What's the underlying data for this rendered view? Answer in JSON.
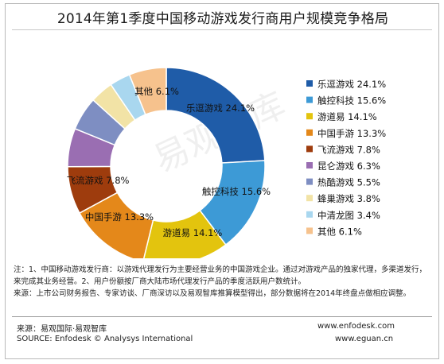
{
  "title": "2014年第1季度中国移动游戏发行商用户规模竞争格局",
  "chart_data": {
    "type": "pie",
    "variant": "donut",
    "unit": "%",
    "legend_position": "right",
    "slices": [
      {
        "name": "乐逗游戏",
        "value": 24.1,
        "label": "24.1%",
        "color": "#1f5ca8"
      },
      {
        "name": "触控科技",
        "value": 15.6,
        "label": "15.6%",
        "color": "#3d9ad6"
      },
      {
        "name": "游道易",
        "value": 14.1,
        "label": "14.1%",
        "color": "#e3c40e"
      },
      {
        "name": "中国手游",
        "value": 13.3,
        "label": "13.3%",
        "color": "#e4881a"
      },
      {
        "name": "飞流游戏",
        "value": 7.8,
        "label": "7.8%",
        "color": "#9e3c0d"
      },
      {
        "name": "昆仑游戏",
        "value": 6.3,
        "label": "6.3%",
        "color": "#9a6eb2"
      },
      {
        "name": "热酷游戏",
        "value": 5.5,
        "label": "5.5%",
        "color": "#7e8ec2"
      },
      {
        "name": "蜂巢游戏",
        "value": 3.8,
        "label": "3.8%",
        "color": "#f2e3a6"
      },
      {
        "name": "中清龙图",
        "value": 3.4,
        "label": "3.4%",
        "color": "#a9d7ef"
      },
      {
        "name": "其他",
        "value": 6.1,
        "label": "6.1%",
        "color": "#f6c28d"
      }
    ]
  },
  "watermark": "易观智库",
  "notes": [
    "注：1、中国移动游戏发行商：以游戏代理发行为主要经营业务的中国游戏企业。通过对游戏产品的独家代理，多渠道发行，来完成其业务经营。2、用户份额按厂商大陆市场代理发行产品的季度活跃用户数统计。",
    "来源：上市公司财务报告、专家访谈、厂商深访以及易观智库推算模型得出，部分数据将在2014年终盘点做相应调整。"
  ],
  "footer": {
    "source_cn": "来源：易观国际·易观智库",
    "source_en": "SOURCE: Enfodesk © Analysys International",
    "url1": "www.enfodesk.com",
    "url2": "www.eguan.cn"
  }
}
